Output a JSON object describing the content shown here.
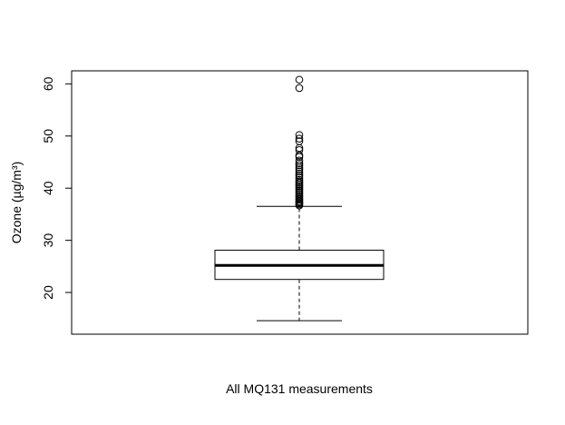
{
  "chart_data": {
    "type": "boxplot",
    "title": "",
    "xlabel": "All MQ131 measurements",
    "ylabel": "Ozone (µg/m³)",
    "ylim": [
      12.0,
      62.5
    ],
    "yticks": [
      20,
      30,
      40,
      50,
      60
    ],
    "grid": false,
    "box": {
      "whisker_low": 14.6,
      "q1": 22.5,
      "median": 25.2,
      "q3": 28.1,
      "whisker_high": 36.5
    },
    "outliers": [
      36.7,
      36.9,
      37.1,
      37.3,
      37.5,
      37.8,
      38.0,
      38.3,
      38.6,
      38.9,
      39.2,
      39.5,
      39.8,
      40.1,
      40.4,
      40.7,
      41.0,
      41.3,
      41.6,
      42.0,
      42.4,
      42.8,
      43.2,
      43.6,
      44.0,
      44.4,
      44.8,
      45.3,
      46.0,
      46.3,
      47.3,
      47.7,
      49.0,
      49.5,
      50.2,
      59.2,
      60.8
    ]
  }
}
